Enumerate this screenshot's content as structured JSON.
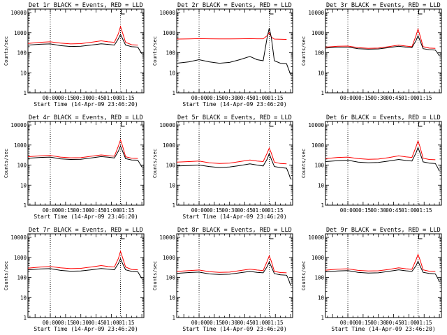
{
  "chart_data": [
    {
      "type": "line",
      "title": "Det 1r BLACK = Events, RED = LLD",
      "xlabel": "Start Time (14-Apr-09 23:46:20)",
      "ylabel": "Counts/sec",
      "y_scale": "log",
      "ylim": [
        1,
        15000
      ],
      "xlim": [
        -22,
        92
      ],
      "x_tick_labels": [
        "00:00",
        "00:15",
        "00:30",
        "00:45",
        "01:00",
        "01:15"
      ],
      "x_tick_values": [
        0,
        15,
        30,
        45,
        60,
        75
      ],
      "y_tick_labels": [
        "1",
        "10",
        "100",
        "1000",
        "10000"
      ],
      "dotted_vlines": [
        0,
        69
      ],
      "series": [
        {
          "name": "BLACK",
          "color": "#000000",
          "x": [
            -22,
            -10,
            0,
            10,
            20,
            30,
            40,
            50,
            57,
            63,
            67,
            69,
            71,
            74,
            80,
            86,
            88,
            90
          ],
          "y": [
            240,
            265,
            275,
            225,
            205,
            210,
            240,
            280,
            260,
            240,
            500,
            820,
            500,
            240,
            200,
            190,
            130,
            90
          ]
        },
        {
          "name": "RED",
          "color": "#ff0000",
          "x": [
            -22,
            -10,
            0,
            10,
            20,
            30,
            40,
            50,
            57,
            63,
            67,
            69,
            71,
            74,
            80,
            86
          ],
          "y": [
            290,
            330,
            350,
            300,
            275,
            285,
            330,
            390,
            350,
            330,
            900,
            2000,
            1000,
            330,
            250,
            240
          ]
        }
      ]
    },
    {
      "type": "line",
      "title": "Det 2r BLACK = Events, RED = LLD",
      "xlabel": "Start Time (14-Apr-09 23:46:20)",
      "ylabel": "Counts/sec",
      "y_scale": "log",
      "ylim": [
        1,
        15000
      ],
      "xlim": [
        -22,
        92
      ],
      "x_tick_labels": [
        "00:00",
        "00:15",
        "00:30",
        "00:45",
        "01:00",
        "01:15"
      ],
      "x_tick_values": [
        0,
        15,
        30,
        45,
        60,
        75
      ],
      "y_tick_labels": [
        "1",
        "10",
        "100",
        "1000",
        "10000"
      ],
      "dotted_vlines": [
        0,
        69
      ],
      "series": [
        {
          "name": "BLACK",
          "color": "#000000",
          "x": [
            -22,
            -10,
            0,
            10,
            20,
            30,
            40,
            50,
            57,
            63,
            67,
            69,
            71,
            74,
            80,
            86,
            88,
            90
          ],
          "y": [
            30,
            35,
            45,
            35,
            30,
            33,
            45,
            65,
            45,
            40,
            600,
            1700,
            600,
            40,
            30,
            28,
            15,
            8
          ]
        },
        {
          "name": "RED",
          "color": "#ff0000",
          "x": [
            -22,
            -10,
            0,
            10,
            20,
            30,
            40,
            50,
            57,
            63,
            67,
            69,
            71,
            74,
            80,
            86
          ],
          "y": [
            480,
            490,
            500,
            495,
            490,
            490,
            495,
            500,
            495,
            495,
            700,
            1000,
            600,
            480,
            470,
            460
          ]
        }
      ]
    },
    {
      "type": "line",
      "title": "Det 3r BLACK = Events, RED = LLD",
      "xlabel": "",
      "ylabel": "Counts/sec",
      "y_scale": "log",
      "ylim": [
        1,
        15000
      ],
      "xlim": [
        -22,
        92
      ],
      "x_tick_labels": [
        "00:00",
        "00:15",
        "00:30",
        "00:45",
        "01:00",
        "01:15"
      ],
      "x_tick_values": [
        0,
        15,
        30,
        45,
        60,
        75
      ],
      "y_tick_labels": [
        "1",
        "10",
        "100",
        "1000",
        "10000"
      ],
      "dotted_vlines": [
        0,
        69
      ],
      "series": [
        {
          "name": "BLACK",
          "color": "#000000",
          "x": [
            -22,
            -10,
            0,
            10,
            20,
            30,
            40,
            50,
            57,
            63,
            67,
            69,
            71,
            74,
            80,
            86,
            88,
            90
          ],
          "y": [
            170,
            190,
            190,
            160,
            150,
            155,
            180,
            210,
            190,
            180,
            400,
            700,
            400,
            160,
            140,
            135,
            100,
            70
          ]
        },
        {
          "name": "RED",
          "color": "#ff0000",
          "x": [
            -22,
            -10,
            0,
            10,
            20,
            30,
            40,
            50,
            57,
            63,
            67,
            69,
            71,
            74,
            80,
            86
          ],
          "y": [
            190,
            210,
            215,
            180,
            165,
            170,
            200,
            240,
            215,
            200,
            700,
            1500,
            700,
            200,
            170,
            165
          ]
        }
      ]
    },
    {
      "type": "line",
      "title": "Det 4r BLACK = Events, RED = LLD",
      "xlabel": "Start Time (14-Apr-09 23:46:20)",
      "ylabel": "Counts/sec",
      "y_scale": "log",
      "ylim": [
        1,
        15000
      ],
      "xlim": [
        -22,
        92
      ],
      "x_tick_labels": [
        "00:00",
        "00:15",
        "00:30",
        "00:45",
        "01:00",
        "01:15"
      ],
      "x_tick_values": [
        0,
        15,
        30,
        45,
        60,
        75
      ],
      "y_tick_labels": [
        "1",
        "10",
        "100",
        "1000",
        "10000"
      ],
      "dotted_vlines": [
        0,
        69
      ],
      "series": [
        {
          "name": "BLACK",
          "color": "#000000",
          "x": [
            -22,
            -10,
            0,
            10,
            20,
            30,
            40,
            50,
            57,
            63,
            67,
            69,
            71,
            74,
            80,
            86,
            88,
            90
          ],
          "y": [
            220,
            240,
            250,
            205,
            190,
            195,
            225,
            265,
            245,
            225,
            500,
            900,
            500,
            210,
            180,
            175,
            120,
            80
          ]
        },
        {
          "name": "RED",
          "color": "#ff0000",
          "x": [
            -22,
            -10,
            0,
            10,
            20,
            30,
            40,
            50,
            57,
            63,
            67,
            69,
            71,
            74,
            80,
            86
          ],
          "y": [
            260,
            290,
            300,
            250,
            230,
            235,
            275,
            320,
            295,
            275,
            900,
            1800,
            900,
            260,
            220,
            215
          ]
        }
      ]
    },
    {
      "type": "line",
      "title": "Det 5r BLACK = Events, RED = LLD",
      "xlabel": "Start Time (14-Apr-09 23:46:20)",
      "ylabel": "Counts/sec",
      "y_scale": "log",
      "ylim": [
        1,
        15000
      ],
      "xlim": [
        -22,
        92
      ],
      "x_tick_labels": [
        "00:00",
        "00:15",
        "00:30",
        "00:45",
        "01:00",
        "01:15"
      ],
      "x_tick_values": [
        0,
        15,
        30,
        45,
        60,
        75
      ],
      "y_tick_labels": [
        "1",
        "10",
        "100",
        "1000",
        "10000"
      ],
      "dotted_vlines": [
        0,
        69
      ],
      "series": [
        {
          "name": "BLACK",
          "color": "#000000",
          "x": [
            -22,
            -10,
            0,
            10,
            20,
            30,
            40,
            50,
            57,
            63,
            67,
            69,
            71,
            74,
            80,
            86,
            88,
            90
          ],
          "y": [
            90,
            95,
            100,
            85,
            75,
            80,
            95,
            115,
            100,
            90,
            200,
            380,
            200,
            85,
            75,
            70,
            40,
            20
          ]
        },
        {
          "name": "RED",
          "color": "#ff0000",
          "x": [
            -22,
            -10,
            0,
            10,
            20,
            30,
            40,
            50,
            57,
            63,
            67,
            69,
            71,
            74,
            80,
            86
          ],
          "y": [
            140,
            150,
            160,
            130,
            120,
            125,
            150,
            180,
            160,
            150,
            400,
            700,
            400,
            140,
            120,
            115
          ]
        }
      ]
    },
    {
      "type": "line",
      "title": "Det 6r BLACK = Events, RED = LLD",
      "xlabel": "",
      "ylabel": "Counts/sec",
      "y_scale": "log",
      "ylim": [
        1,
        15000
      ],
      "xlim": [
        -22,
        92
      ],
      "x_tick_labels": [
        "00:00",
        "00:15",
        "00:30",
        "00:45",
        "01:00",
        "01:15"
      ],
      "x_tick_values": [
        0,
        15,
        30,
        45,
        60,
        75
      ],
      "y_tick_labels": [
        "1",
        "10",
        "100",
        "1000",
        "10000"
      ],
      "dotted_vlines": [
        0,
        69
      ],
      "series": [
        {
          "name": "BLACK",
          "color": "#000000",
          "x": [
            -22,
            -10,
            0,
            10,
            20,
            30,
            40,
            50,
            57,
            63,
            67,
            69,
            71,
            74,
            80,
            86,
            88,
            90
          ],
          "y": [
            150,
            165,
            175,
            140,
            130,
            135,
            160,
            190,
            170,
            160,
            400,
            750,
            400,
            145,
            125,
            120,
            80,
            50
          ]
        },
        {
          "name": "RED",
          "color": "#ff0000",
          "x": [
            -22,
            -10,
            0,
            10,
            20,
            30,
            40,
            50,
            57,
            63,
            67,
            69,
            71,
            74,
            80,
            86
          ],
          "y": [
            210,
            240,
            250,
            210,
            195,
            200,
            235,
            290,
            255,
            240,
            800,
            1600,
            800,
            220,
            190,
            185
          ]
        }
      ]
    },
    {
      "type": "line",
      "title": "Det 7r BLACK = Events, RED = LLD",
      "xlabel": "Start Time (14-Apr-09 23:46:20)",
      "ylabel": "Counts/sec",
      "y_scale": "log",
      "ylim": [
        1,
        15000
      ],
      "xlim": [
        -22,
        92
      ],
      "x_tick_labels": [
        "00:00",
        "00:15",
        "00:30",
        "00:45",
        "01:00",
        "01:15"
      ],
      "x_tick_values": [
        0,
        15,
        30,
        45,
        60,
        75
      ],
      "y_tick_labels": [
        "1",
        "10",
        "100",
        "1000",
        "10000"
      ],
      "dotted_vlines": [
        0,
        69
      ],
      "series": [
        {
          "name": "BLACK",
          "color": "#000000",
          "x": [
            -22,
            -10,
            0,
            10,
            20,
            30,
            40,
            50,
            57,
            63,
            67,
            69,
            71,
            74,
            80,
            86,
            88,
            90
          ],
          "y": [
            240,
            265,
            275,
            225,
            205,
            210,
            240,
            280,
            260,
            240,
            500,
            850,
            500,
            240,
            200,
            190,
            130,
            90
          ]
        },
        {
          "name": "RED",
          "color": "#ff0000",
          "x": [
            -22,
            -10,
            0,
            10,
            20,
            30,
            40,
            50,
            57,
            63,
            67,
            69,
            71,
            74,
            80,
            86
          ],
          "y": [
            290,
            330,
            350,
            300,
            275,
            285,
            330,
            390,
            350,
            330,
            900,
            2000,
            1000,
            330,
            250,
            240
          ]
        }
      ]
    },
    {
      "type": "line",
      "title": "Det 8r BLACK = Events, RED = LLD",
      "xlabel": "Start Time (14-Apr-09 23:46:20)",
      "ylabel": "Counts/sec",
      "y_scale": "log",
      "ylim": [
        1,
        15000
      ],
      "xlim": [
        -22,
        92
      ],
      "x_tick_labels": [
        "00:00",
        "00:15",
        "00:30",
        "00:45",
        "01:00",
        "01:15"
      ],
      "x_tick_values": [
        0,
        15,
        30,
        45,
        60,
        75
      ],
      "y_tick_labels": [
        "1",
        "10",
        "100",
        "1000",
        "10000"
      ],
      "dotted_vlines": [
        0,
        69
      ],
      "series": [
        {
          "name": "BLACK",
          "color": "#000000",
          "x": [
            -22,
            -10,
            0,
            10,
            20,
            30,
            40,
            50,
            57,
            63,
            67,
            69,
            71,
            74,
            80,
            86,
            88,
            90
          ],
          "y": [
            160,
            175,
            185,
            150,
            140,
            145,
            170,
            200,
            180,
            170,
            350,
            600,
            350,
            155,
            135,
            130,
            80,
            40
          ]
        },
        {
          "name": "RED",
          "color": "#ff0000",
          "x": [
            -22,
            -10,
            0,
            10,
            20,
            30,
            40,
            50,
            57,
            63,
            67,
            69,
            71,
            74,
            80,
            86
          ],
          "y": [
            200,
            220,
            235,
            195,
            180,
            185,
            220,
            260,
            235,
            220,
            650,
            1200,
            650,
            200,
            175,
            170
          ]
        }
      ]
    },
    {
      "type": "line",
      "title": "Det 9r BLACK = Events, RED = LLD",
      "xlabel": "Start Time (14-Apr-09 23:46:20)",
      "ylabel": "Counts/sec",
      "y_scale": "log",
      "ylim": [
        1,
        15000
      ],
      "xlim": [
        -22,
        92
      ],
      "x_tick_labels": [
        "00:00",
        "00:15",
        "00:30",
        "00:45",
        "01:00",
        "01:15"
      ],
      "x_tick_values": [
        0,
        15,
        30,
        45,
        60,
        75
      ],
      "y_tick_labels": [
        "1",
        "10",
        "100",
        "1000",
        "10000"
      ],
      "dotted_vlines": [
        0,
        69
      ],
      "series": [
        {
          "name": "BLACK",
          "color": "#000000",
          "x": [
            -22,
            -10,
            0,
            10,
            20,
            30,
            40,
            50,
            57,
            63,
            67,
            69,
            71,
            74,
            80,
            86,
            88,
            90
          ],
          "y": [
            190,
            210,
            220,
            180,
            165,
            170,
            200,
            240,
            215,
            200,
            380,
            650,
            380,
            180,
            160,
            150,
            100,
            60
          ]
        },
        {
          "name": "RED",
          "color": "#ff0000",
          "x": [
            -22,
            -10,
            0,
            10,
            20,
            30,
            40,
            50,
            57,
            63,
            67,
            69,
            71,
            74,
            80,
            86
          ],
          "y": [
            230,
            260,
            270,
            225,
            210,
            215,
            250,
            300,
            270,
            255,
            750,
            1400,
            750,
            240,
            205,
            200
          ]
        }
      ]
    }
  ]
}
